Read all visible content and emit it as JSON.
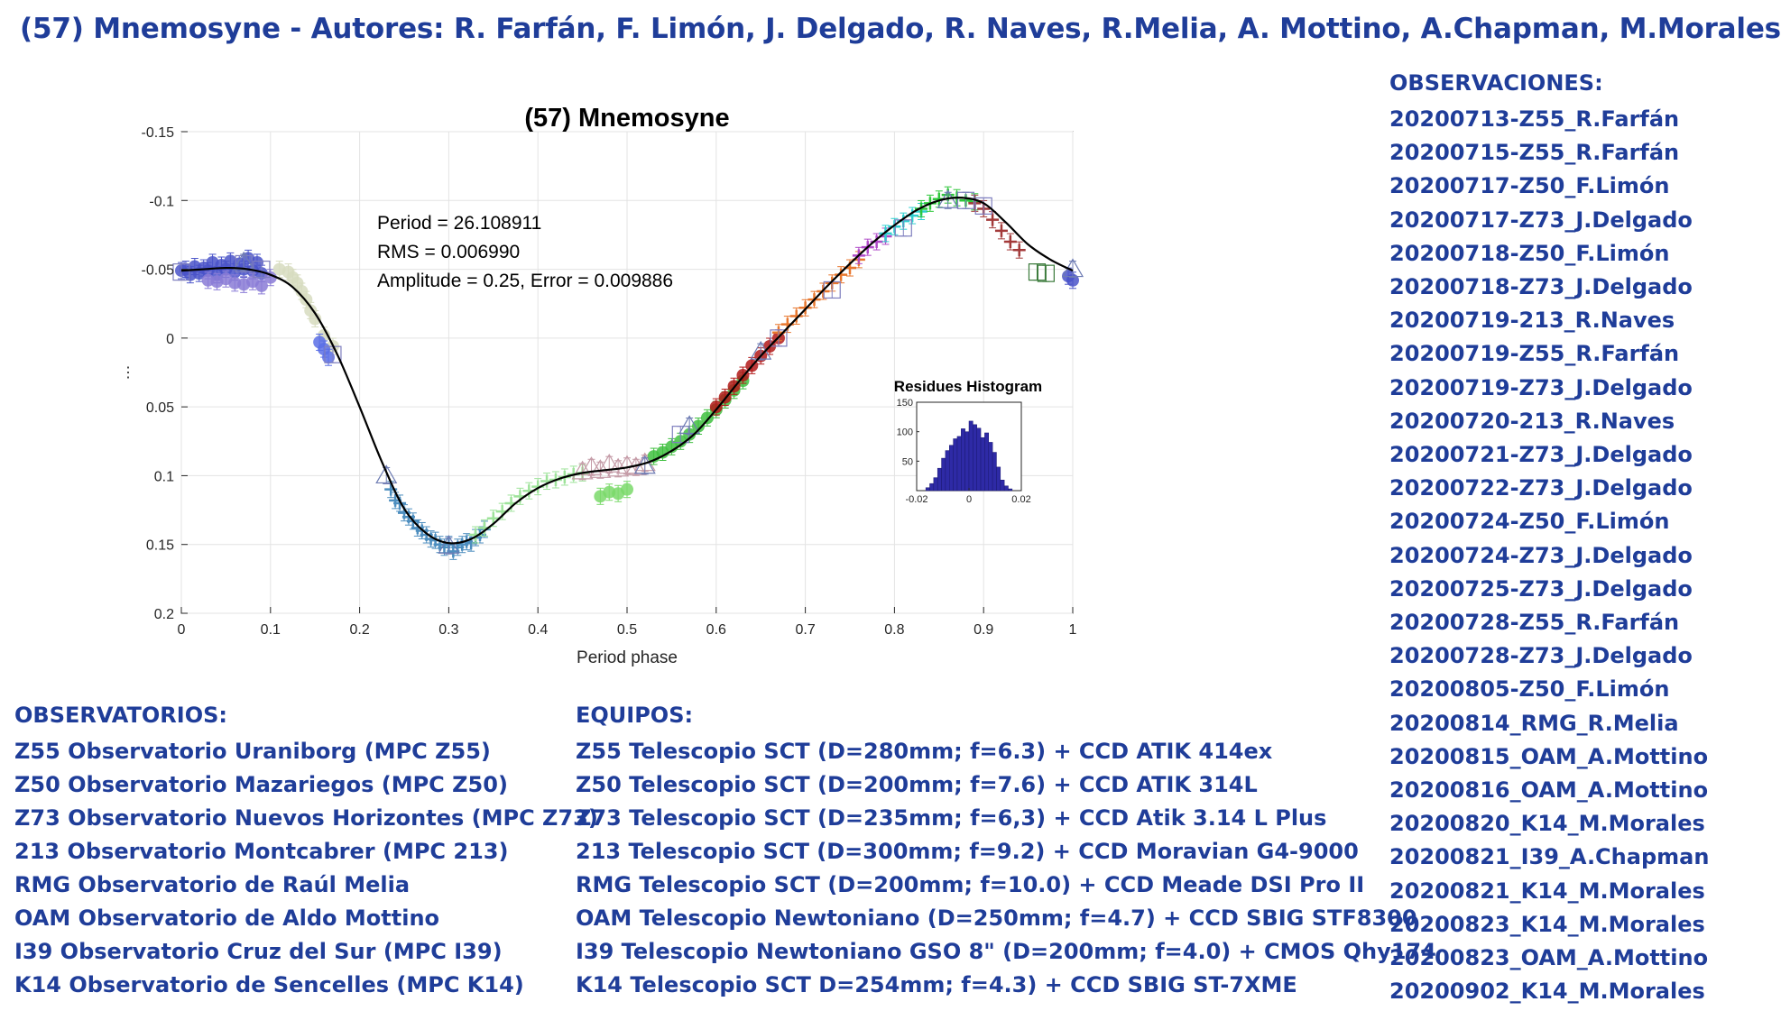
{
  "page": {
    "title": "(57) Mnemosyne - Autores: R. Farfán, F. Limón, J. Delgado, R. Naves, R.Melia, A. Mottino, A.Chapman, M.Morales"
  },
  "colors": {
    "heading_blue": "#1f3d99",
    "fit_curve": "#000000",
    "histogram_bar": "#2e2aa6"
  },
  "observaciones": {
    "heading": "OBSERVACIONES:",
    "items": [
      "20200713-Z55_R.Farfán",
      "20200715-Z55_R.Farfán",
      "20200717-Z50_F.Limón",
      "20200717-Z73_J.Delgado",
      "20200718-Z50_F.Limón",
      "20200718-Z73_J.Delgado",
      "20200719-213_R.Naves",
      "20200719-Z55_R.Farfán",
      "20200719-Z73_J.Delgado",
      "20200720-213_R.Naves",
      "20200721-Z73_J.Delgado",
      "20200722-Z73_J.Delgado",
      "20200724-Z50_F.Limón",
      "20200724-Z73_J.Delgado",
      "20200725-Z73_J.Delgado",
      "20200728-Z55_R.Farfán",
      "20200728-Z73_J.Delgado",
      "20200805-Z50_F.Limón",
      "20200814_RMG_R.Melia",
      "20200815_OAM_A.Mottino",
      "20200816_OAM_A.Mottino",
      "20200820_K14_M.Morales",
      "20200821_I39_A.Chapman",
      "20200821_K14_M.Morales",
      "20200823_K14_M.Morales",
      "20200823_OAM_A.Mottino",
      "20200902_K14_M.Morales"
    ]
  },
  "observatorios": {
    "heading": "OBSERVATORIOS:",
    "items": [
      "Z55 Observatorio Uraniborg (MPC Z55)",
      "Z50 Observatorio Mazariegos (MPC Z50)",
      "Z73 Observatorio Nuevos Horizontes (MPC Z73)",
      "213 Observatorio Montcabrer (MPC 213)",
      "RMG Observatorio de Raúl Melia",
      "OAM Observatorio de Aldo Mottino",
      "I39 Observatorio Cruz del Sur (MPC I39)",
      "K14 Observatorio de Sencelles (MPC K14)"
    ]
  },
  "equipos": {
    "heading": "EQUIPOS:",
    "items": [
      "Z55 Telescopio SCT (D=280mm; f=6.3) + CCD ATIK 414ex",
      "Z50 Telescopio SCT (D=200mm; f=7.6) + CCD ATIK 314L",
      "Z73 Telescopio SCT (D=235mm; f=6,3) + CCD Atik 3.14 L Plus",
      "213 Telescopio SCT (D=300mm; f=9.2) + CCD Moravian G4-9000",
      "RMG Telescopio SCT (D=200mm; f=10.0) + CCD Meade DSI Pro II",
      "OAM Telescopio Newtoniano (D=250mm; f=4.7) + CCD SBIG STF8300",
      "I39 Telescopio Newtoniano GSO 8\" (D=200mm; f=4.0) + CMOS Qhy174",
      "K14 Telescopio SCT D=254mm; f=4.3) + CCD SBIG ST-7XME"
    ]
  },
  "chart_data": [
    {
      "type": "scatter",
      "title": "(57) Mnemosyne",
      "xlabel": "Period phase",
      "ylabel": "⋮",
      "xlim": [
        0,
        1
      ],
      "ylim": [
        -0.15,
        0.2
      ],
      "y_reversed": true,
      "grid": true,
      "xticks": [
        "0",
        "0.1",
        "0.2",
        "0.3",
        "0.4",
        "0.5",
        "0.6",
        "0.7",
        "0.8",
        "0.9",
        "1"
      ],
      "yticks": [
        "-0.15",
        "-0.1",
        "-0.05",
        "0",
        "0.05",
        "0.1",
        "0.15",
        "0.2"
      ],
      "annotations": [
        "Period =  26.108911",
        "RMS = 0.006990",
        "Amplitude = 0.25, Error =   0.009886"
      ],
      "fit_curve": {
        "x": [
          0,
          0.025,
          0.05,
          0.075,
          0.1,
          0.125,
          0.15,
          0.175,
          0.2,
          0.225,
          0.25,
          0.275,
          0.3,
          0.325,
          0.35,
          0.375,
          0.4,
          0.425,
          0.45,
          0.475,
          0.5,
          0.525,
          0.55,
          0.575,
          0.6,
          0.625,
          0.65,
          0.675,
          0.7,
          0.725,
          0.75,
          0.775,
          0.8,
          0.825,
          0.85,
          0.875,
          0.9,
          0.925,
          0.95,
          0.975,
          1
        ],
        "y": [
          -0.049,
          -0.05,
          -0.051,
          -0.05,
          -0.046,
          -0.037,
          -0.018,
          0.012,
          0.05,
          0.09,
          0.124,
          0.142,
          0.149,
          0.146,
          0.135,
          0.12,
          0.109,
          0.102,
          0.098,
          0.096,
          0.094,
          0.09,
          0.082,
          0.07,
          0.052,
          0.032,
          0.013,
          -0.004,
          -0.021,
          -0.038,
          -0.054,
          -0.069,
          -0.082,
          -0.093,
          -0.1,
          -0.102,
          -0.098,
          -0.084,
          -0.068,
          -0.057,
          -0.049
        ]
      },
      "series": [
        {
          "color": "#4a54c9",
          "marker": "dot",
          "x": [
            0.0,
            0.005,
            0.01,
            0.015,
            0.02,
            0.025,
            0.03,
            0.035,
            0.04,
            0.045,
            0.05,
            0.055,
            0.06,
            0.065,
            0.07,
            0.075,
            0.08,
            0.085,
            0.09,
            0.995,
            1.0
          ],
          "y": [
            -0.049,
            -0.05,
            -0.046,
            -0.052,
            -0.047,
            -0.051,
            -0.049,
            -0.055,
            -0.046,
            -0.053,
            -0.05,
            -0.056,
            -0.048,
            -0.054,
            -0.05,
            -0.058,
            -0.049,
            -0.055,
            -0.047,
            -0.045,
            -0.042
          ]
        },
        {
          "color": "#8a7bd6",
          "marker": "dot",
          "x": [
            0.03,
            0.04,
            0.05,
            0.06,
            0.07,
            0.08,
            0.09,
            0.1
          ],
          "y": [
            -0.042,
            -0.041,
            -0.043,
            -0.04,
            -0.039,
            -0.041,
            -0.038,
            -0.044
          ]
        },
        {
          "color": "#d7dcc0",
          "marker": "dot",
          "x": [
            0.11,
            0.12,
            0.125,
            0.13,
            0.135,
            0.14,
            0.145,
            0.15,
            0.16,
            0.17
          ],
          "y": [
            -0.05,
            -0.048,
            -0.044,
            -0.04,
            -0.034,
            -0.028,
            -0.02,
            -0.014,
            -0.002,
            0.006
          ]
        },
        {
          "color": "#5a6ee6",
          "marker": "dot",
          "x": [
            0.155,
            0.16,
            0.165
          ],
          "y": [
            0.003,
            0.008,
            0.014
          ]
        },
        {
          "color": "#4d8ebf",
          "marker": "plus",
          "x": [
            0.235,
            0.24,
            0.245,
            0.25,
            0.255,
            0.26,
            0.265,
            0.27,
            0.275,
            0.28,
            0.285,
            0.29,
            0.295,
            0.3,
            0.305,
            0.31,
            0.315,
            0.32,
            0.325,
            0.33,
            0.335,
            0.34
          ],
          "y": [
            0.11,
            0.118,
            0.12,
            0.127,
            0.13,
            0.133,
            0.138,
            0.14,
            0.143,
            0.146,
            0.147,
            0.15,
            0.152,
            0.15,
            0.155,
            0.152,
            0.15,
            0.148,
            0.149,
            0.145,
            0.143,
            0.139
          ]
        },
        {
          "color": "#9ee39a",
          "marker": "plus",
          "x": [
            0.33,
            0.34,
            0.35,
            0.36,
            0.37,
            0.38,
            0.39,
            0.4,
            0.41,
            0.42,
            0.43,
            0.44,
            0.45
          ],
          "y": [
            0.143,
            0.138,
            0.131,
            0.126,
            0.12,
            0.115,
            0.111,
            0.108,
            0.104,
            0.103,
            0.101,
            0.099,
            0.098
          ]
        },
        {
          "color": "#c49aa6",
          "marker": "triangle",
          "x": [
            0.45,
            0.46,
            0.47,
            0.48,
            0.49,
            0.5,
            0.51,
            0.52
          ],
          "y": [
            0.097,
            0.094,
            0.096,
            0.092,
            0.095,
            0.093,
            0.094,
            0.091
          ]
        },
        {
          "color": "#7ad96a",
          "marker": "dot",
          "x": [
            0.47,
            0.48,
            0.49,
            0.5
          ],
          "y": [
            0.115,
            0.112,
            0.113,
            0.11
          ]
        },
        {
          "color": "#3fbf3f",
          "marker": "dot",
          "x": [
            0.53,
            0.54,
            0.55,
            0.56,
            0.57,
            0.58,
            0.59,
            0.6,
            0.61,
            0.62,
            0.63
          ],
          "y": [
            0.086,
            0.083,
            0.079,
            0.075,
            0.07,
            0.064,
            0.058,
            0.052,
            0.045,
            0.038,
            0.031
          ]
        },
        {
          "color": "#b21919",
          "marker": "dot",
          "x": [
            0.6,
            0.61,
            0.62,
            0.63,
            0.64,
            0.65,
            0.66,
            0.67
          ],
          "y": [
            0.05,
            0.043,
            0.035,
            0.027,
            0.02,
            0.013,
            0.006,
            0.0
          ]
        },
        {
          "color": "#e8772e",
          "marker": "plus",
          "x": [
            0.67,
            0.68,
            0.69,
            0.7,
            0.71,
            0.72,
            0.73,
            0.74,
            0.75,
            0.76
          ],
          "y": [
            -0.004,
            -0.01,
            -0.016,
            -0.022,
            -0.028,
            -0.034,
            -0.04,
            -0.046,
            -0.051,
            -0.057
          ]
        },
        {
          "color": "#b04ac8",
          "marker": "plus",
          "x": [
            0.76,
            0.77,
            0.78,
            0.79
          ],
          "y": [
            -0.06,
            -0.066,
            -0.07,
            -0.074
          ]
        },
        {
          "color": "#2fd0d0",
          "marker": "plus",
          "x": [
            0.79,
            0.8,
            0.81,
            0.82,
            0.83
          ],
          "y": [
            -0.076,
            -0.081,
            -0.085,
            -0.089,
            -0.092
          ]
        },
        {
          "color": "#2ec73a",
          "marker": "plus",
          "x": [
            0.83,
            0.84,
            0.85,
            0.86,
            0.87,
            0.88,
            0.89
          ],
          "y": [
            -0.094,
            -0.098,
            -0.101,
            -0.104,
            -0.102,
            -0.1,
            -0.099
          ]
        },
        {
          "color": "#a33a3a",
          "marker": "plus",
          "x": [
            0.89,
            0.9,
            0.91,
            0.92,
            0.93,
            0.94
          ],
          "y": [
            -0.098,
            -0.094,
            -0.086,
            -0.078,
            -0.07,
            -0.064
          ]
        },
        {
          "color": "#3a7a3a",
          "marker": "square",
          "x": [
            0.96,
            0.97
          ],
          "y": [
            -0.048,
            -0.047
          ]
        },
        {
          "color": "#7f7fbf",
          "marker": "square",
          "x": [
            0.0,
            0.07,
            0.09,
            0.17,
            0.56,
            0.67,
            0.73,
            0.81,
            0.88,
            0.9
          ],
          "y": [
            -0.048,
            -0.054,
            -0.05,
            0.012,
            0.07,
            0.0,
            -0.035,
            -0.08,
            -0.1,
            -0.096
          ]
        },
        {
          "color": "#6d7bb3",
          "marker": "triangle",
          "x": [
            0.07,
            0.23,
            0.3,
            0.52,
            0.57,
            0.65,
            0.86,
            1.0
          ],
          "y": [
            -0.055,
            0.1,
            0.151,
            0.093,
            0.064,
            0.01,
            -0.1,
            -0.05
          ]
        }
      ]
    },
    {
      "type": "bar",
      "title": "Residues Histogram",
      "xlim": [
        -0.02,
        0.02
      ],
      "ylim": [
        0,
        150
      ],
      "xticks": [
        "-0.02",
        "0",
        "0.02"
      ],
      "yticks": [
        "50",
        "100",
        "150"
      ],
      "bin_start": -0.0165,
      "bin_width": 0.0015,
      "values": [
        5,
        12,
        22,
        38,
        55,
        68,
        77,
        88,
        92,
        105,
        100,
        118,
        112,
        106,
        90,
        98,
        82,
        65,
        40,
        18,
        8,
        3
      ]
    }
  ]
}
